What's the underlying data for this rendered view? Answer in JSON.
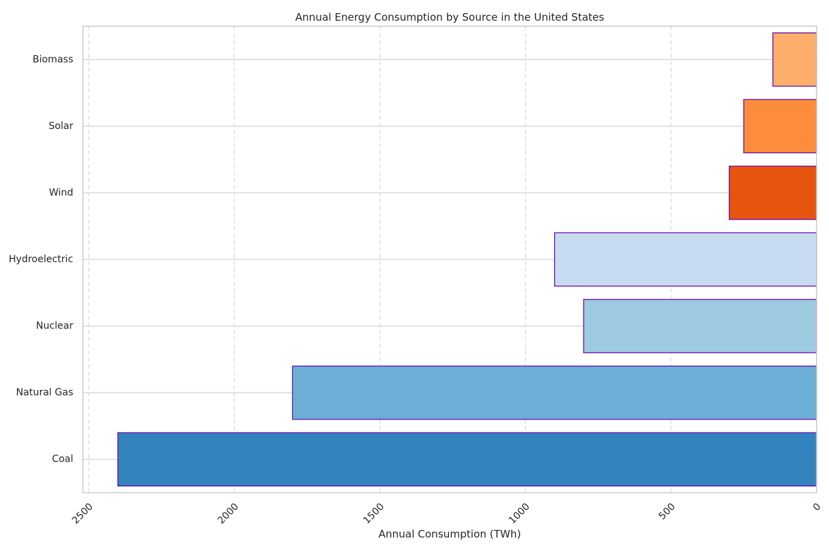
{
  "chart_data": {
    "type": "bar",
    "orientation": "horizontal",
    "title": "Annual Energy Consumption by Source in the United States",
    "xlabel": "Annual Consumption (TWh)",
    "ylabel": "",
    "xaxis_inverted": true,
    "xlim": [
      2520,
      0
    ],
    "xticks": [
      "2500",
      "2000",
      "1500",
      "1000",
      "500",
      "0"
    ],
    "grid": "x-dashed, y-solid",
    "categories": [
      "Coal",
      "Natural Gas",
      "Nuclear",
      "Hydroelectric",
      "Wind",
      "Solar",
      "Biomass"
    ],
    "values": [
      2400,
      1800,
      800,
      900,
      300,
      250,
      150
    ],
    "colors": [
      "#3383be",
      "#6baed6",
      "#9ecae1",
      "#c6dbef",
      "#e6550d",
      "#fd8d3c",
      "#fdae6b"
    ],
    "edge_color": "#6a0dad"
  }
}
